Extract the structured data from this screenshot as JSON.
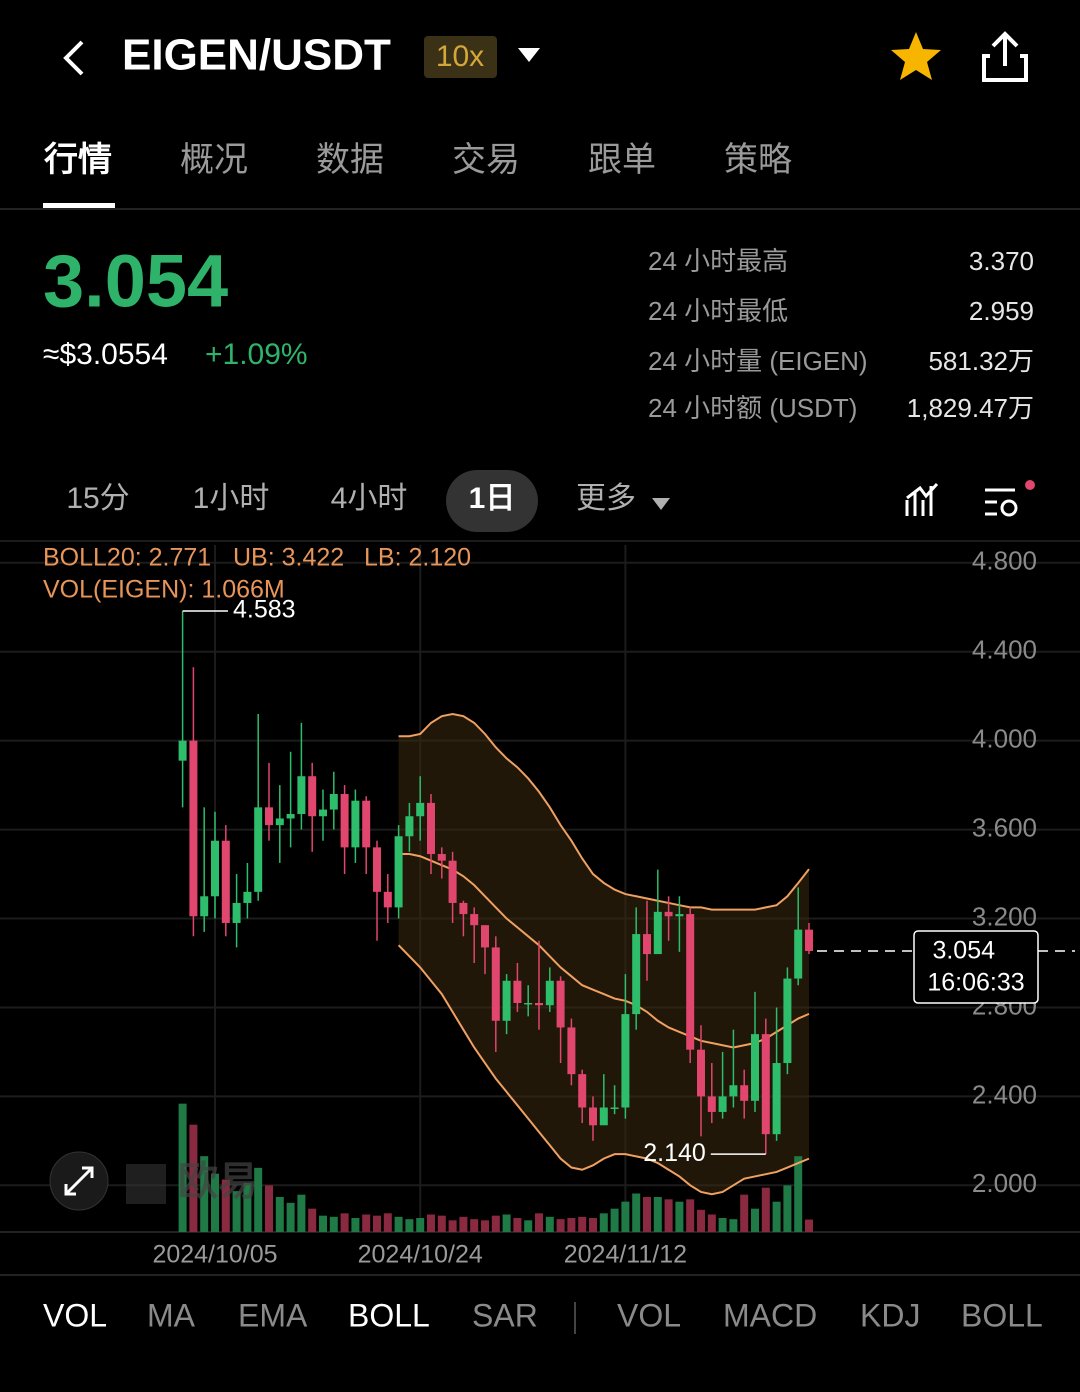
{
  "header": {
    "title": "EIGEN/USDT",
    "leverage": "10x"
  },
  "tabs": {
    "items": [
      "行情",
      "概况",
      "数据",
      "交易",
      "跟单",
      "策略"
    ],
    "active": 0
  },
  "ticker": {
    "price": "3.054",
    "usd_price": "≈$3.0554",
    "change": "+1.09%",
    "stats": [
      {
        "label": "24 小时最高",
        "value": "3.370"
      },
      {
        "label": "24 小时最低",
        "value": "2.959"
      },
      {
        "label": "24 小时量 (EIGEN)",
        "value": "581.32万"
      },
      {
        "label": "24 小时额 (USDT)",
        "value": "1,829.47万"
      }
    ]
  },
  "intervals": {
    "items": [
      "15分",
      "1小时",
      "4小时",
      "1日",
      "更多"
    ],
    "active": 3
  },
  "watermark": "欧易",
  "chart_data": {
    "type": "candlestick",
    "boll_text": "BOLL20: 2.771",
    "ub_text": "UB: 3.422",
    "lb_text": "LB: 2.120",
    "vol_text": "VOL(EIGEN): 1.066M",
    "categories": [
      null,
      null,
      null,
      "2024/10/05",
      null,
      null,
      null,
      null,
      null,
      null,
      null,
      null,
      null,
      null,
      null,
      null,
      null,
      null,
      null,
      null,
      null,
      null,
      "2024/10/24",
      null,
      null,
      null,
      null,
      null,
      null,
      null,
      null,
      null,
      null,
      null,
      null,
      null,
      null,
      null,
      null,
      null,
      null,
      "2024/11/12",
      null,
      null,
      null,
      null,
      null,
      null,
      null,
      null,
      null,
      null,
      null,
      null,
      null,
      null,
      null,
      null,
      null
    ],
    "open": [
      3.91,
      4.0,
      3.21,
      3.3,
      3.55,
      3.18,
      3.27,
      3.32,
      3.7,
      3.62,
      3.65,
      3.67,
      3.84,
      3.66,
      3.69,
      3.76,
      3.52,
      3.73,
      3.52,
      3.32,
      3.25,
      3.57,
      3.66,
      3.72,
      3.49,
      3.46,
      3.27,
      3.22,
      3.17,
      3.07,
      2.74,
      2.92,
      2.82,
      2.82,
      2.81,
      2.92,
      2.71,
      2.5,
      2.35,
      2.27,
      2.35,
      2.35,
      2.77,
      3.13,
      3.04,
      3.23,
      3.21,
      3.22,
      2.61,
      2.4,
      2.33,
      2.4,
      2.45,
      2.38,
      2.68,
      2.23,
      2.55,
      2.93,
      3.15
    ],
    "high": [
      4.583,
      4.33,
      3.7,
      3.68,
      3.62,
      3.4,
      3.45,
      4.12,
      3.9,
      3.8,
      3.95,
      4.08,
      3.9,
      3.78,
      3.86,
      3.8,
      3.78,
      3.75,
      3.55,
      3.4,
      3.62,
      3.72,
      3.84,
      3.76,
      3.52,
      3.5,
      3.28,
      3.25,
      3.17,
      3.12,
      2.95,
      3.0,
      2.9,
      3.1,
      2.98,
      2.94,
      2.75,
      2.52,
      2.4,
      2.5,
      2.45,
      2.95,
      3.25,
      3.28,
      3.42,
      3.3,
      3.3,
      3.25,
      2.72,
      2.55,
      2.6,
      2.7,
      2.52,
      2.87,
      2.75,
      2.8,
      2.98,
      3.34,
      3.18
    ],
    "low": [
      3.7,
      3.12,
      3.14,
      3.2,
      3.12,
      3.07,
      3.2,
      3.28,
      3.55,
      3.45,
      3.52,
      3.6,
      3.5,
      3.55,
      3.6,
      3.4,
      3.45,
      3.4,
      3.1,
      3.18,
      3.2,
      3.5,
      3.55,
      3.4,
      3.38,
      3.18,
      3.12,
      3.0,
      2.95,
      2.6,
      2.68,
      2.78,
      2.76,
      2.7,
      2.78,
      2.55,
      2.45,
      2.28,
      2.2,
      2.3,
      2.32,
      2.3,
      2.7,
      2.92,
      3.05,
      3.1,
      3.05,
      2.55,
      2.22,
      2.28,
      2.3,
      2.35,
      2.3,
      2.33,
      2.14,
      2.2,
      2.5,
      2.9,
      3.04
    ],
    "close": [
      4.0,
      3.21,
      3.3,
      3.55,
      3.18,
      3.27,
      3.32,
      3.7,
      3.62,
      3.65,
      3.67,
      3.84,
      3.66,
      3.69,
      3.76,
      3.52,
      3.73,
      3.52,
      3.32,
      3.25,
      3.57,
      3.66,
      3.72,
      3.49,
      3.46,
      3.27,
      3.22,
      3.17,
      3.07,
      2.74,
      2.92,
      2.82,
      2.82,
      2.81,
      2.92,
      2.71,
      2.5,
      2.35,
      2.27,
      2.35,
      2.35,
      2.77,
      3.13,
      3.04,
      3.23,
      3.21,
      3.22,
      2.61,
      2.4,
      2.33,
      2.4,
      2.45,
      2.38,
      2.68,
      2.23,
      2.55,
      2.93,
      3.15,
      3.054
    ],
    "volume": [
      11000000,
      9200000,
      6500000,
      5000000,
      4500000,
      3500000,
      4200000,
      5500000,
      4000000,
      3000000,
      2500000,
      3200000,
      2000000,
      1400000,
      1300000,
      1600000,
      1200000,
      1500000,
      1400000,
      1600000,
      1300000,
      1100000,
      1200000,
      1500000,
      1400000,
      1000000,
      1300000,
      1100000,
      1000000,
      1400000,
      1500000,
      1200000,
      1000000,
      1600000,
      1300000,
      1100000,
      1200000,
      1300000,
      1200000,
      1600000,
      2000000,
      2600000,
      3300000,
      3000000,
      3000000,
      2800000,
      2600000,
      2800000,
      1900000,
      1500000,
      1200000,
      1100000,
      3200000,
      2000000,
      3800000,
      2600000,
      4000000,
      6500000,
      1066000
    ],
    "boll_upper": [
      null,
      null,
      null,
      null,
      null,
      null,
      null,
      null,
      null,
      null,
      null,
      null,
      null,
      null,
      null,
      null,
      null,
      null,
      null,
      null,
      4.02,
      4.02,
      4.03,
      4.08,
      4.11,
      4.12,
      4.11,
      4.08,
      4.03,
      3.97,
      3.92,
      3.88,
      3.83,
      3.77,
      3.7,
      3.62,
      3.55,
      3.47,
      3.4,
      3.36,
      3.33,
      3.31,
      3.3,
      3.29,
      3.28,
      3.27,
      3.26,
      3.25,
      3.25,
      3.24,
      3.24,
      3.24,
      3.24,
      3.24,
      3.25,
      3.26,
      3.3,
      3.36,
      3.422
    ],
    "boll_mid": [
      null,
      null,
      null,
      null,
      null,
      null,
      null,
      null,
      null,
      null,
      null,
      null,
      null,
      null,
      null,
      null,
      null,
      null,
      null,
      null,
      3.49,
      3.49,
      3.48,
      3.46,
      3.44,
      3.42,
      3.39,
      3.35,
      3.3,
      3.25,
      3.2,
      3.16,
      3.12,
      3.08,
      3.03,
      2.98,
      2.94,
      2.9,
      2.88,
      2.86,
      2.84,
      2.83,
      2.81,
      2.78,
      2.74,
      2.71,
      2.69,
      2.67,
      2.65,
      2.64,
      2.63,
      2.62,
      2.63,
      2.64,
      2.66,
      2.69,
      2.72,
      2.75,
      2.771
    ],
    "boll_lower": [
      null,
      null,
      null,
      null,
      null,
      null,
      null,
      null,
      null,
      null,
      null,
      null,
      null,
      null,
      null,
      null,
      null,
      null,
      null,
      null,
      3.08,
      3.03,
      2.98,
      2.92,
      2.86,
      2.78,
      2.7,
      2.62,
      2.55,
      2.48,
      2.42,
      2.36,
      2.3,
      2.24,
      2.18,
      2.12,
      2.08,
      2.07,
      2.09,
      2.12,
      2.14,
      2.14,
      2.13,
      2.12,
      2.1,
      2.07,
      2.04,
      2.0,
      1.97,
      1.96,
      1.97,
      2.0,
      2.03,
      2.04,
      2.05,
      2.06,
      2.08,
      2.1,
      2.12
    ],
    "up_color": "#2ebd6b",
    "down_color": "#e0466e",
    "boll_color": "#f0a060",
    "ylim": [
      1.79,
      4.88
    ],
    "yticks": [
      {
        "value": 4.8,
        "label": "4.800"
      },
      {
        "value": 4.4,
        "label": "4.400"
      },
      {
        "value": 4.0,
        "label": "4.000"
      },
      {
        "value": 3.6,
        "label": "3.600"
      },
      {
        "value": 3.2,
        "label": "3.200"
      },
      {
        "value": 2.8,
        "label": "2.800"
      },
      {
        "value": 2.4,
        "label": "2.400"
      },
      {
        "value": 2.0,
        "label": "2.000"
      }
    ],
    "volume_ylim": [
      0,
      12000000
    ],
    "min_annotation": {
      "value": 2.14,
      "label": "2.140"
    },
    "last_time": "16:06:33"
  },
  "indicator_tabs": {
    "main": [
      "VOL",
      "MA",
      "EMA",
      "BOLL",
      "SAR"
    ],
    "main_active": [
      0,
      3
    ],
    "sub": [
      "VOL",
      "MACD",
      "KDJ",
      "BOLL"
    ]
  }
}
